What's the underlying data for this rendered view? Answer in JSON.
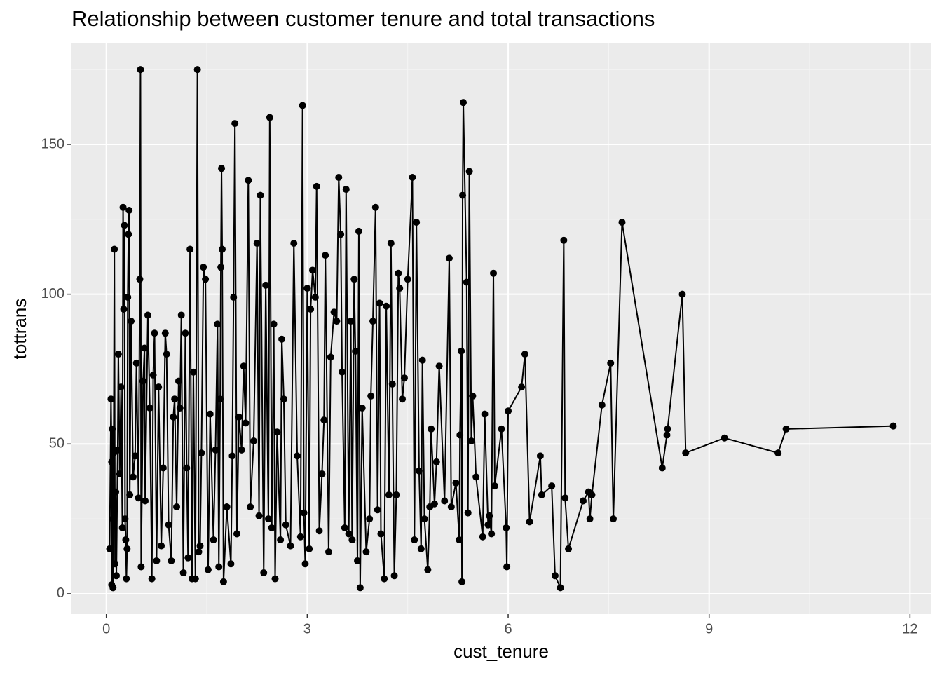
{
  "chart_data": {
    "type": "line",
    "title": "Relationship between customer tenure and total transactions",
    "x_label": "cust_tenure",
    "y_label": "tottrans",
    "color": "#000000",
    "markers": true,
    "grid": true,
    "xlim": [
      -0.52,
      12.31
    ],
    "ylim": [
      -6.8,
      183.7
    ],
    "xticks": [
      0,
      3,
      6,
      9,
      12
    ],
    "yticks": [
      0,
      50,
      100,
      150
    ],
    "minor_xticks": [
      1.5,
      4.5,
      7.5,
      10.5
    ],
    "minor_yticks": [
      25,
      75,
      125,
      175
    ],
    "x": [
      0.05,
      0.07,
      0.08,
      0.08,
      0.09,
      0.1,
      0.1,
      0.11,
      0.12,
      0.13,
      0.14,
      0.15,
      0.17,
      0.18,
      0.2,
      0.22,
      0.24,
      0.25,
      0.26,
      0.27,
      0.28,
      0.29,
      0.3,
      0.31,
      0.32,
      0.33,
      0.34,
      0.35,
      0.37,
      0.4,
      0.43,
      0.45,
      0.48,
      0.5,
      0.51,
      0.52,
      0.55,
      0.57,
      0.58,
      0.62,
      0.65,
      0.68,
      0.7,
      0.72,
      0.75,
      0.78,
      0.82,
      0.85,
      0.88,
      0.9,
      0.93,
      0.97,
      1.0,
      1.02,
      1.05,
      1.08,
      1.1,
      1.12,
      1.15,
      1.18,
      1.2,
      1.22,
      1.25,
      1.28,
      1.3,
      1.33,
      1.36,
      1.38,
      1.4,
      1.42,
      1.45,
      1.48,
      1.52,
      1.55,
      1.6,
      1.63,
      1.66,
      1.68,
      1.7,
      1.71,
      1.72,
      1.73,
      1.75,
      1.8,
      1.86,
      1.88,
      1.9,
      1.92,
      1.95,
      1.98,
      2.02,
      2.05,
      2.08,
      2.12,
      2.15,
      2.2,
      2.25,
      2.28,
      2.3,
      2.35,
      2.38,
      2.42,
      2.44,
      2.47,
      2.5,
      2.52,
      2.55,
      2.6,
      2.62,
      2.65,
      2.68,
      2.75,
      2.8,
      2.85,
      2.9,
      2.93,
      2.95,
      2.97,
      3.0,
      3.03,
      3.05,
      3.08,
      3.12,
      3.14,
      3.18,
      3.22,
      3.25,
      3.27,
      3.32,
      3.35,
      3.4,
      3.44,
      3.47,
      3.5,
      3.52,
      3.56,
      3.58,
      3.62,
      3.65,
      3.67,
      3.7,
      3.72,
      3.75,
      3.77,
      3.79,
      3.82,
      3.88,
      3.93,
      3.95,
      3.98,
      4.02,
      4.05,
      4.08,
      4.1,
      4.15,
      4.18,
      4.22,
      4.25,
      4.27,
      4.3,
      4.33,
      4.36,
      4.38,
      4.42,
      4.45,
      4.5,
      4.57,
      4.6,
      4.63,
      4.67,
      4.7,
      4.72,
      4.75,
      4.8,
      4.83,
      4.85,
      4.9,
      4.93,
      4.97,
      5.05,
      5.12,
      5.15,
      5.22,
      5.27,
      5.28,
      5.3,
      5.31,
      5.32,
      5.33,
      5.38,
      5.4,
      5.42,
      5.45,
      5.47,
      5.52,
      5.62,
      5.65,
      5.7,
      5.72,
      5.75,
      5.78,
      5.8,
      5.9,
      5.97,
      5.98,
      6.0,
      6.2,
      6.25,
      6.32,
      6.48,
      6.5,
      6.65,
      6.7,
      6.78,
      6.83,
      6.85,
      6.9,
      7.12,
      7.2,
      7.22,
      7.25,
      7.4,
      7.53,
      7.57,
      7.7,
      8.3,
      8.37,
      8.38,
      8.6,
      8.65,
      9.23,
      10.03,
      10.15,
      11.75
    ],
    "values": [
      15,
      65,
      44,
      3,
      55,
      25,
      2,
      47,
      115,
      10,
      34,
      6,
      48,
      80,
      40,
      69,
      22,
      129,
      95,
      123,
      25,
      18,
      5,
      15,
      99,
      120,
      128,
      33,
      91,
      39,
      46,
      77,
      32,
      105,
      175,
      9,
      71,
      82,
      31,
      93,
      62,
      5,
      73,
      87,
      11,
      69,
      16,
      42,
      87,
      80,
      23,
      11,
      59,
      65,
      29,
      71,
      62,
      93,
      7,
      87,
      42,
      12,
      115,
      5,
      74,
      5,
      175,
      14,
      16,
      47,
      109,
      105,
      8,
      60,
      18,
      48,
      90,
      9,
      65,
      109,
      142,
      115,
      4,
      29,
      10,
      46,
      99,
      157,
      20,
      59,
      48,
      76,
      57,
      138,
      29,
      51,
      117,
      26,
      133,
      7,
      103,
      25,
      159,
      22,
      90,
      5,
      54,
      18,
      85,
      65,
      23,
      16,
      117,
      46,
      19,
      163,
      27,
      10,
      102,
      15,
      95,
      108,
      99,
      136,
      21,
      40,
      58,
      113,
      14,
      79,
      94,
      91,
      139,
      120,
      74,
      22,
      135,
      20,
      91,
      18,
      105,
      81,
      11,
      121,
      2,
      62,
      14,
      25,
      66,
      91,
      129,
      28,
      97,
      20,
      5,
      96,
      33,
      117,
      70,
      6,
      33,
      107,
      102,
      65,
      72,
      105,
      139,
      18,
      124,
      41,
      15,
      78,
      25,
      8,
      29,
      55,
      30,
      44,
      76,
      31,
      112,
      29,
      37,
      18,
      53,
      81,
      4,
      133,
      164,
      104,
      27,
      141,
      51,
      66,
      39,
      19,
      60,
      23,
      26,
      20,
      107,
      36,
      55,
      22,
      9,
      61,
      69,
      80,
      24,
      46,
      33,
      36,
      6,
      2,
      118,
      32,
      15,
      31,
      34,
      25,
      33,
      63,
      77,
      25,
      124,
      42,
      53,
      55,
      100,
      47,
      52,
      47,
      55,
      56
    ]
  }
}
